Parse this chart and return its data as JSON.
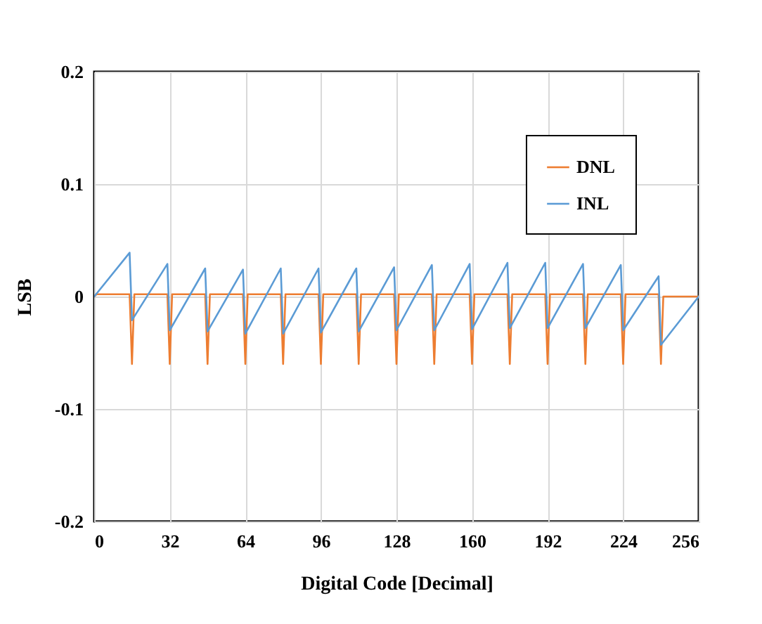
{
  "chart_data": {
    "type": "line",
    "xlabel": "Digital Code [Decimal]",
    "ylabel": "LSB",
    "xlim": [
      0,
      256
    ],
    "xticks": [
      0,
      32,
      64,
      96,
      128,
      160,
      192,
      224,
      256
    ],
    "ylim": [
      -0.2,
      0.2
    ],
    "yticks": [
      -0.2,
      -0.1,
      0,
      0.1,
      0.2
    ],
    "grid": true,
    "legend": "top right",
    "marker": "none",
    "line_style": "solid",
    "series": [
      {
        "name": "DNL",
        "color": "#ed7d31",
        "x": [
          0,
          1,
          15,
          16,
          17,
          31,
          32,
          33,
          47,
          48,
          49,
          63,
          64,
          65,
          79,
          80,
          81,
          95,
          96,
          97,
          111,
          112,
          113,
          127,
          128,
          129,
          143,
          144,
          145,
          159,
          160,
          161,
          175,
          176,
          177,
          191,
          192,
          193,
          207,
          208,
          209,
          223,
          224,
          225,
          239,
          240,
          241,
          256
        ],
        "values": [
          0,
          0.002,
          0.002,
          -0.06,
          0.002,
          0.002,
          -0.06,
          0.002,
          0.002,
          -0.06,
          0.002,
          0.002,
          -0.06,
          0.002,
          0.002,
          -0.06,
          0.002,
          0.002,
          -0.06,
          0.002,
          0.002,
          -0.06,
          0.002,
          0.002,
          -0.06,
          0.002,
          0.002,
          -0.06,
          0.002,
          0.002,
          -0.06,
          0.002,
          0.002,
          -0.06,
          0.002,
          0.002,
          -0.06,
          0.002,
          0.002,
          -0.06,
          0.002,
          0.002,
          -0.06,
          0.002,
          0.002,
          -0.06,
          0,
          0
        ]
      },
      {
        "name": "INL",
        "color": "#5b9bd5",
        "x": [
          0,
          15,
          16,
          31,
          32,
          47,
          48,
          63,
          64,
          79,
          80,
          95,
          96,
          111,
          112,
          127,
          128,
          143,
          144,
          159,
          160,
          175,
          176,
          191,
          192,
          207,
          208,
          223,
          224,
          239,
          240,
          256
        ],
        "values": [
          0,
          0.039,
          -0.021,
          0.029,
          -0.03,
          0.025,
          -0.031,
          0.024,
          -0.033,
          0.025,
          -0.033,
          0.025,
          -0.032,
          0.025,
          -0.031,
          0.026,
          -0.03,
          0.028,
          -0.03,
          0.029,
          -0.029,
          0.03,
          -0.028,
          0.03,
          -0.028,
          0.029,
          -0.028,
          0.028,
          -0.03,
          0.018,
          -0.043,
          0
        ]
      }
    ]
  }
}
